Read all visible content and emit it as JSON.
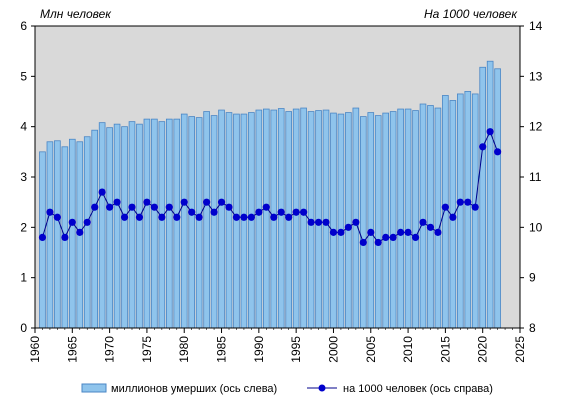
{
  "chart_data": {
    "type": "bar",
    "title": "",
    "left_unit_label": "Млн  человек",
    "right_unit_label": "На 1000 человек",
    "xlim": [
      1960,
      2025
    ],
    "x_ticks": [
      "1960",
      "1965",
      "1970",
      "1975",
      "1980",
      "1985",
      "1990",
      "1995",
      "2000",
      "2005",
      "2010",
      "2015",
      "2020",
      "2025"
    ],
    "y_left": {
      "min": 0,
      "max": 6,
      "ticks": [
        "0",
        "1",
        "2",
        "3",
        "4",
        "5",
        "6"
      ]
    },
    "y_right": {
      "min": 8,
      "max": 14,
      "ticks": [
        "8",
        "9",
        "10",
        "11",
        "12",
        "13",
        "14"
      ]
    },
    "grid": false,
    "legend_position": "bottom",
    "colors": {
      "bar_fill": "#8fc4ec",
      "bar_stroke": "#4a86c5",
      "plot_bg": "#d9d9d9",
      "line": "#00008b",
      "marker": "#0000cc"
    },
    "x": [
      1961,
      1962,
      1963,
      1964,
      1965,
      1966,
      1967,
      1968,
      1969,
      1970,
      1971,
      1972,
      1973,
      1974,
      1975,
      1976,
      1977,
      1978,
      1979,
      1980,
      1981,
      1982,
      1983,
      1984,
      1985,
      1986,
      1987,
      1988,
      1989,
      1990,
      1991,
      1992,
      1993,
      1994,
      1995,
      1996,
      1997,
      1998,
      1999,
      2000,
      2001,
      2002,
      2003,
      2004,
      2005,
      2006,
      2007,
      2008,
      2009,
      2010,
      2011,
      2012,
      2013,
      2014,
      2015,
      2016,
      2017,
      2018,
      2019,
      2020,
      2021,
      2022
    ],
    "series": [
      {
        "name": "миллионов  умерших (ось слева)",
        "type": "bar",
        "axis": "left",
        "values": [
          3.5,
          3.7,
          3.72,
          3.6,
          3.75,
          3.7,
          3.8,
          3.93,
          4.08,
          3.98,
          4.05,
          4.0,
          4.1,
          4.05,
          4.15,
          4.15,
          4.1,
          4.15,
          4.15,
          4.25,
          4.2,
          4.18,
          4.3,
          4.22,
          4.33,
          4.28,
          4.25,
          4.25,
          4.28,
          4.33,
          4.35,
          4.33,
          4.36,
          4.3,
          4.35,
          4.37,
          4.3,
          4.32,
          4.33,
          4.27,
          4.25,
          4.28,
          4.37,
          4.2,
          4.28,
          4.22,
          4.27,
          4.3,
          4.35,
          4.35,
          4.32,
          4.45,
          4.42,
          4.37,
          4.62,
          4.52,
          4.65,
          4.7,
          4.65,
          5.18,
          5.3,
          5.15
        ]
      },
      {
        "name": "на 1000 человек (ось справа)",
        "type": "line",
        "axis": "right",
        "values": [
          9.8,
          10.3,
          10.2,
          9.8,
          10.1,
          9.9,
          10.1,
          10.4,
          10.7,
          10.4,
          10.5,
          10.2,
          10.4,
          10.2,
          10.5,
          10.4,
          10.2,
          10.4,
          10.2,
          10.5,
          10.3,
          10.2,
          10.5,
          10.3,
          10.5,
          10.4,
          10.2,
          10.2,
          10.2,
          10.3,
          10.4,
          10.2,
          10.3,
          10.2,
          10.3,
          10.3,
          10.1,
          10.1,
          10.1,
          9.9,
          9.9,
          10.0,
          10.1,
          9.7,
          9.9,
          9.7,
          9.8,
          9.8,
          9.9,
          9.9,
          9.8,
          10.1,
          10.0,
          9.9,
          10.4,
          10.2,
          10.5,
          10.5,
          10.4,
          11.6,
          11.9,
          11.5
        ]
      }
    ]
  }
}
